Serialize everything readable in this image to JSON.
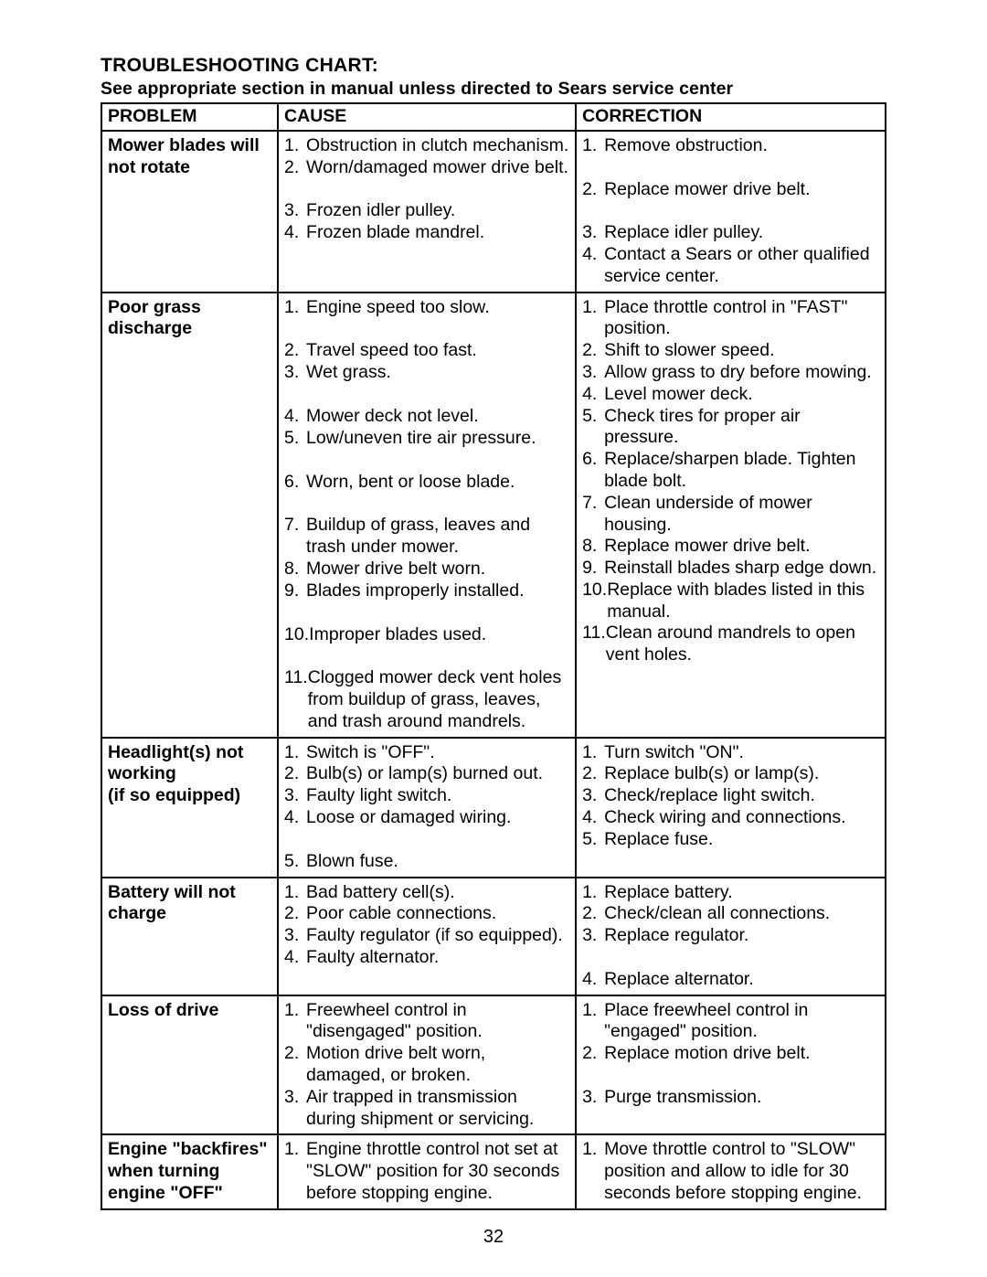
{
  "title": "TROUBLESHOOTING CHART:",
  "subtitle": "See appropriate section in manual unless directed to Sears service center",
  "headers": {
    "problem": "PROBLEM",
    "cause": "CAUSE",
    "correction": "CORRECTION"
  },
  "page_number": "32",
  "rows": [
    {
      "problem": "Mower blades will not rotate",
      "causes": [
        "Obstruction in clutch mechanism.",
        "Worn/damaged mower drive belt.",
        "Frozen idler pulley.",
        "Frozen blade mandrel."
      ],
      "corrections": [
        "Remove obstruction.",
        "Replace mower drive belt.",
        "Replace idler pulley.",
        "Contact a Sears or other qualified service center."
      ],
      "cause_spacers": {
        "1": 1
      },
      "corr_spacers": {
        "0": 1,
        "1": 1
      }
    },
    {
      "problem": "Poor grass discharge",
      "causes": [
        "Engine speed too slow.",
        "Travel speed too fast.",
        "Wet grass.",
        "Mower deck not level.",
        "Low/uneven tire air pressure.",
        "Worn, bent or loose blade.",
        "Buildup of grass, leaves and trash under mower.",
        "Mower drive belt worn.",
        "Blades improperly installed.",
        "Improper blades used.",
        "Clogged mower deck vent holes from buildup of grass, leaves, and trash around mandrels."
      ],
      "corrections": [
        "Place throttle control in \"FAST\" position.",
        "Shift to slower speed.",
        "Allow grass to dry before mowing.",
        "Level mower deck.",
        "Check tires for proper air pressure.",
        "Replace/sharpen blade. Tighten blade bolt.",
        "Clean underside of mower housing.",
        "Replace mower drive belt.",
        "Reinstall blades sharp edge down.",
        "Replace with blades listed in this manual.",
        "Clean around mandrels to open vent holes."
      ],
      "cause_spacers": {
        "0": 1,
        "2": 1,
        "4": 1,
        "5": 1,
        "8": 1,
        "9": 1
      }
    },
    {
      "problem": "Headlight(s) not working\n(if so equipped)",
      "causes": [
        "Switch is \"OFF\".",
        "Bulb(s) or lamp(s) burned out.",
        "Faulty light switch.",
        "Loose or damaged wiring.",
        "Blown fuse."
      ],
      "corrections": [
        "Turn switch \"ON\".",
        "Replace bulb(s) or lamp(s).",
        "Check/replace light switch.",
        "Check wiring and connections.",
        "Replace fuse."
      ],
      "cause_spacers": {
        "3": 1
      }
    },
    {
      "problem": "Battery will not charge",
      "causes": [
        "Bad battery cell(s).",
        "Poor cable connections.",
        "Faulty regulator\n(if so equipped).",
        "Faulty alternator."
      ],
      "corrections": [
        "Replace battery.",
        "Check/clean all connections.",
        "Replace regulator.",
        "Replace alternator."
      ],
      "corr_spacers": {
        "2": 1
      }
    },
    {
      "problem": "Loss of drive",
      "causes": [
        "Freewheel control in \"disengaged\" position.",
        "Motion drive belt worn, damaged, or broken.",
        "Air trapped in transmission during shipment or servicing."
      ],
      "corrections": [
        "Place freewheel control in \"engaged\" position.",
        "Replace motion drive belt.",
        "Purge transmission."
      ],
      "corr_spacers": {
        "1": 1
      }
    },
    {
      "problem": "Engine \"backfires\" when turning engine \"OFF\"",
      "causes": [
        "Engine throttle control not set at \"SLOW\" position for 30 seconds before stopping engine."
      ],
      "corrections": [
        "Move throttle control to \"SLOW\" position and allow to idle for 30 seconds before stopping engine."
      ]
    }
  ],
  "style": {
    "font_family": "Arial",
    "body_font_size": 19.5,
    "border_color": "#000000",
    "border_width": 2.5,
    "background_color": "#ffffff",
    "text_color": "#000000"
  }
}
